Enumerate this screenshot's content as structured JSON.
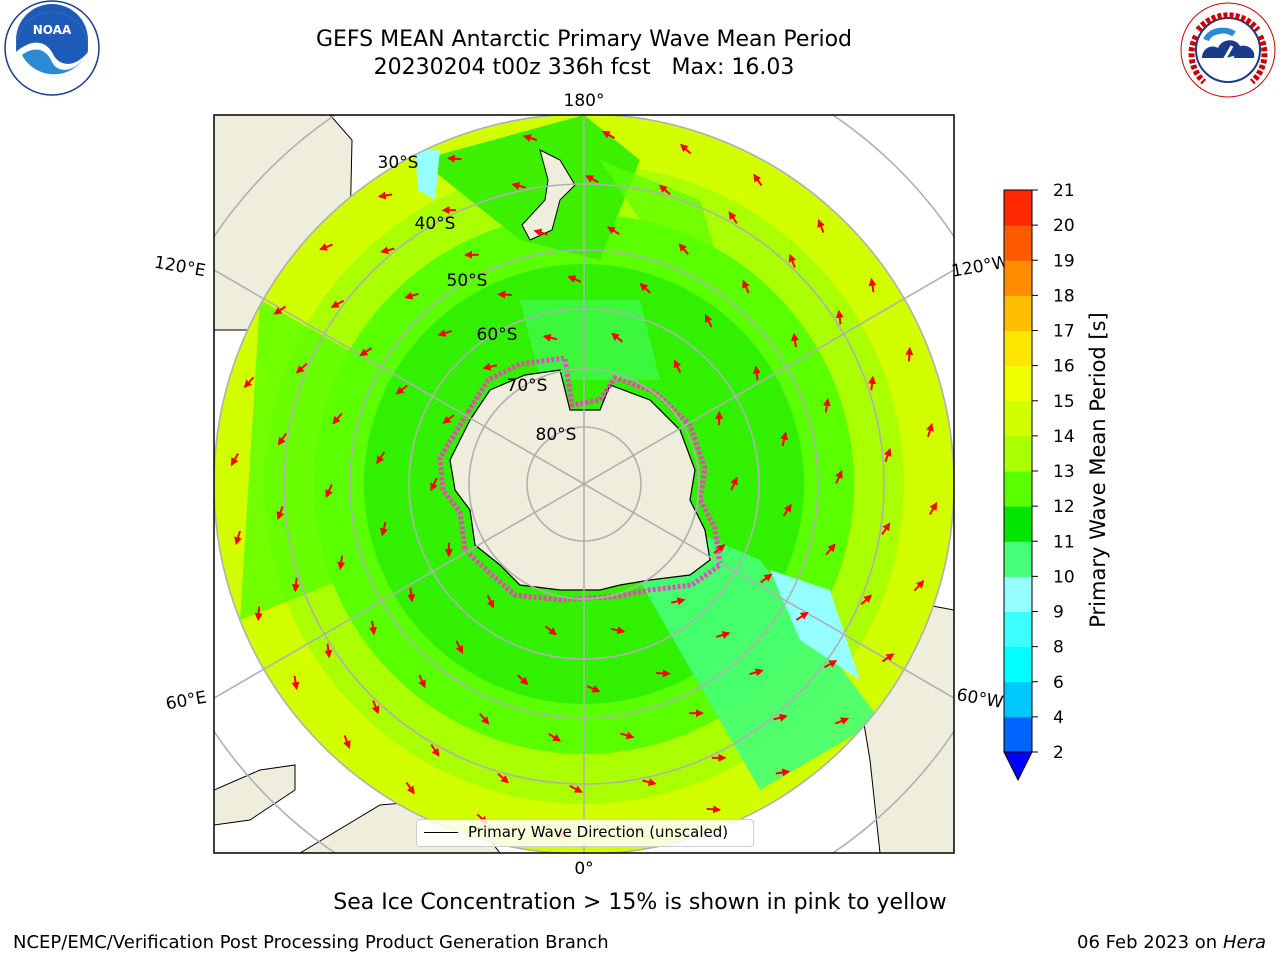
{
  "title_line1": "GEFS MEAN Antarctic Primary Wave Mean Period",
  "title_line2": "20230204 t00z 336h fcst   Max: 16.03",
  "map": {
    "meridian_labels": {
      "top": "180°",
      "bottom": "0°",
      "left_upper": "120°E",
      "left_lower": "60°E",
      "right_upper": "120°W",
      "right_lower": "60°W"
    },
    "latitude_labels": [
      "30°S",
      "40°S",
      "50°S",
      "60°S",
      "70°S",
      "80°S"
    ],
    "legend_label": "Primary Wave Direction (unscaled)"
  },
  "colorbar": {
    "title": "Primary Wave Mean Period [s]",
    "ticks": [
      "2",
      "4",
      "6",
      "8",
      "9",
      "10",
      "11",
      "12",
      "13",
      "14",
      "15",
      "16",
      "17",
      "18",
      "19",
      "20",
      "21"
    ],
    "colors": [
      "#0064ff",
      "#00c8ff",
      "#00ffff",
      "#3cffff",
      "#96ffff",
      "#46ff78",
      "#00e600",
      "#5aff00",
      "#aaff00",
      "#d2ff00",
      "#f0ff00",
      "#ffe600",
      "#ffbe00",
      "#ff8c00",
      "#ff5a00",
      "#ff2800"
    ],
    "under_color": "#0000ff"
  },
  "note": "Sea Ice Concentration > 15% is shown in pink to yellow",
  "footer_left": "NCEP/EMC/Verification Post Processing Product Generation Branch",
  "footer_date": "06 Feb 2023 on",
  "footer_host": "Hera",
  "logos": {
    "left": "noaa-logo",
    "right": "nws-logo"
  }
}
